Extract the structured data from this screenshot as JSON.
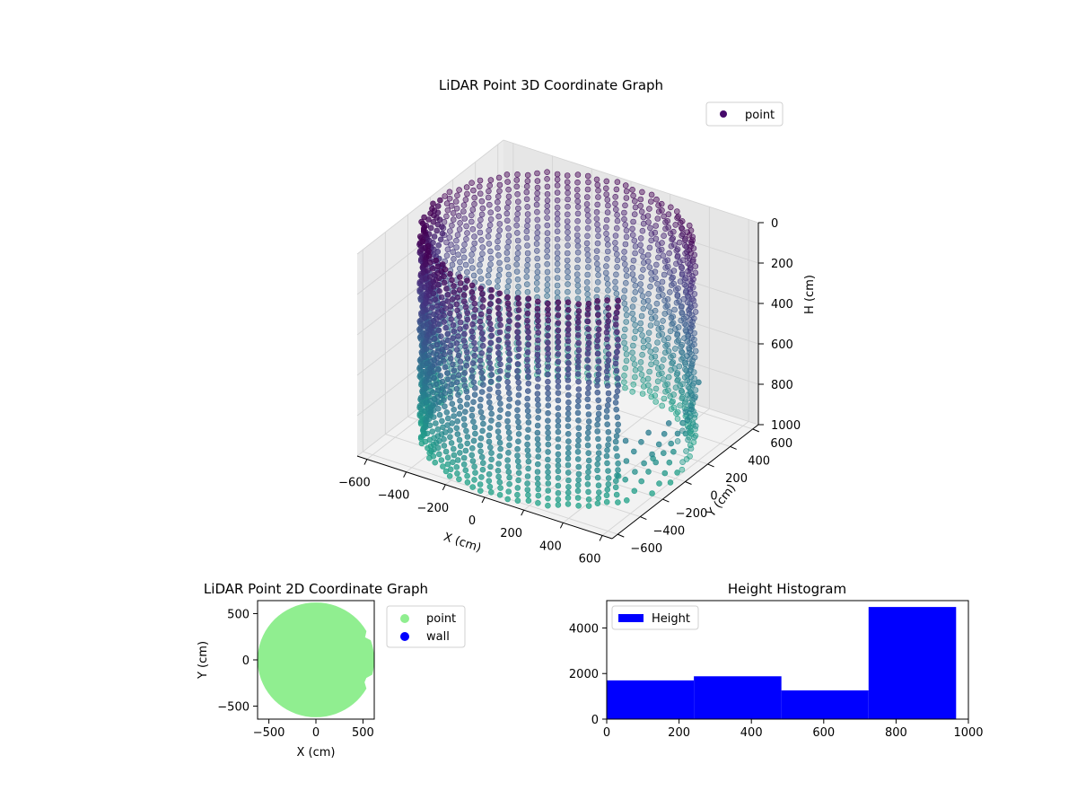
{
  "chart_data": [
    {
      "type": "scatter",
      "projection": "3d",
      "title": "LiDAR Point 3D Coordinate Graph",
      "xlabel": "X (cm)",
      "ylabel": "Y (cm)",
      "zlabel": "H (cm)",
      "xticks": [
        -600,
        -400,
        -200,
        0,
        200,
        400,
        600
      ],
      "yticks": [
        -600,
        -400,
        -200,
        0,
        200,
        400,
        600
      ],
      "zticks": [
        0,
        200,
        400,
        600,
        800,
        1000
      ],
      "xlim": [
        -650,
        650
      ],
      "ylim": [
        -650,
        650
      ],
      "zlim": [
        1000,
        0
      ],
      "z_inverted": true,
      "colormap": "viridis",
      "grid": true,
      "legend": {
        "entries": [
          "point"
        ],
        "position": "upper-right",
        "color": "#46096b"
      },
      "series": [
        {
          "name": "point",
          "shape": "cylinder",
          "radius": 600,
          "height_range": [
            0,
            1000
          ],
          "gap_angle_range_deg": [
            -32,
            32
          ],
          "rings": 32,
          "points_per_ring": 84,
          "outliers": [
            {
              "x": 500,
              "y": 380,
              "h": 720
            },
            {
              "x": 520,
              "y": -60,
              "h": 900
            },
            {
              "x": 560,
              "y": 160,
              "h": 860
            },
            {
              "x": 430,
              "y": -210,
              "h": 950
            }
          ]
        }
      ]
    },
    {
      "type": "scatter",
      "title": "LiDAR Point 2D Coordinate Graph",
      "xlabel": "X (cm)",
      "ylabel": "Y (cm)",
      "xticks": [
        -500,
        0,
        500
      ],
      "yticks": [
        -500,
        0,
        500
      ],
      "xlim": [
        -620,
        620
      ],
      "ylim": [
        -640,
        640
      ],
      "legend": {
        "position": "outside-right",
        "entries": [
          {
            "name": "point",
            "color": "#90ee90"
          },
          {
            "name": "wall",
            "color": "#0000ff"
          }
        ]
      },
      "series": [
        {
          "name": "point",
          "color": "#90ee90",
          "shape": "disc",
          "radius": 620
        },
        {
          "name": "wall",
          "color": "#0000ff",
          "points": []
        }
      ]
    },
    {
      "type": "bar",
      "subtype": "histogram",
      "title": "Height Histogram",
      "xticks": [
        0,
        200,
        400,
        600,
        800,
        1000
      ],
      "yticks": [
        0,
        2000,
        4000
      ],
      "xlim": [
        0,
        1000
      ],
      "ylim": [
        0,
        5200
      ],
      "legend": {
        "entries": [
          "Height"
        ],
        "position": "upper-left",
        "color": "#0000ff"
      },
      "series": [
        {
          "name": "Height",
          "color": "#0000ff",
          "bins": [
            {
              "x0": 0,
              "x1": 241,
              "value": 1700
            },
            {
              "x0": 241,
              "x1": 483,
              "value": 1880
            },
            {
              "x0": 483,
              "x1": 724,
              "value": 1260
            },
            {
              "x0": 724,
              "x1": 966,
              "value": 4920
            }
          ]
        }
      ]
    }
  ]
}
